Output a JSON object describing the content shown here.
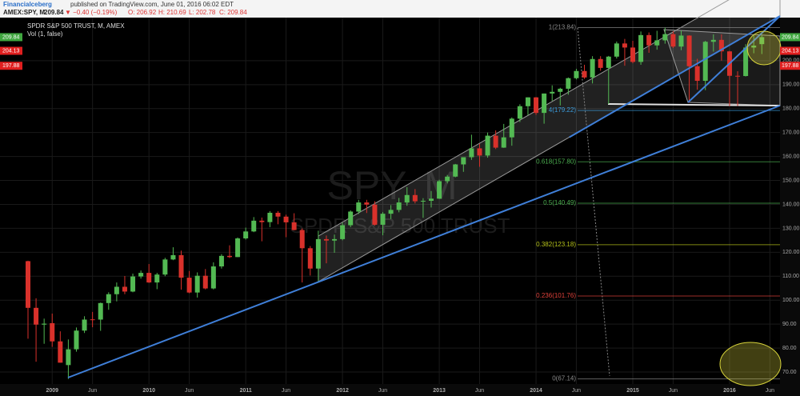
{
  "chart_data": {
    "type": "candlestick",
    "header": {
      "author": "Financialceberg",
      "published": "published on TradingView.com, June 01, 2016 06:02 EDT",
      "symbol": "AMEX:SPY, M",
      "last": "209.84",
      "change": "▼ −0.40 (−0.19%)",
      "o": "O: 206.92",
      "h": "H: 210.69",
      "l": "L: 202.78",
      "c": "C: 209.84"
    },
    "legend": {
      "series": "SPDR S&P 500 TRUST, M, AMEX",
      "indicator": "Vol (1, false)"
    },
    "watermark": {
      "symbol": "SPY, M",
      "name": "SPDR S&P 500 TRUST"
    },
    "categories": [
      null,
      null,
      null,
      "2009",
      null,
      null,
      null,
      null,
      "Jun",
      null,
      null,
      null,
      null,
      null,
      null,
      "2010",
      null,
      null,
      null,
      null,
      "Jun",
      null,
      null,
      null,
      null,
      null,
      null,
      "2011",
      null,
      null,
      null,
      null,
      "Jun",
      null,
      null,
      null,
      null,
      null,
      null,
      "2012",
      null,
      null,
      null,
      null,
      "Jun",
      null,
      null,
      null,
      null,
      null,
      null,
      "2013",
      null,
      null,
      null,
      null,
      "Jun",
      null,
      null,
      null,
      null,
      null,
      null,
      "2014",
      null,
      null,
      null,
      null,
      "Jun",
      null,
      null,
      null,
      null,
      null,
      null,
      "2015",
      null,
      null,
      null,
      null,
      "Jun",
      null,
      null,
      null,
      null,
      null,
      null,
      "2016",
      null,
      null,
      null,
      null,
      "Jun"
    ],
    "open": [
      116.3,
      96.8,
      89.8,
      90.4,
      82.8,
      72.9,
      79.5,
      87.3,
      92.0,
      91.9,
      98.8,
      102.5,
      105.6,
      103.6,
      109.9,
      111.4,
      107.4,
      110.7,
      117.0,
      118.8,
      109.4,
      103.2,
      110.2,
      104.9,
      114.1,
      118.5,
      118.0,
      125.8,
      128.7,
      133.2,
      132.6,
      136.5,
      134.9,
      132.5,
      129.3,
      121.7,
      113.2,
      125.5,
      124.9,
      125.5,
      131.3,
      137.0,
      140.8,
      139.9,
      131.5,
      136.1,
      137.7,
      140.8,
      143.9,
      141.3,
      141.5,
      142.4,
      149.7,
      151.6,
      156.7,
      159.7,
      163.4,
      160.4,
      168.7,
      163.7,
      168.0,
      175.8,
      181.0,
      184.7,
      178.2,
      186.3,
      187.0,
      188.3,
      192.7,
      195.7,
      193.0,
      200.7,
      197.0,
      201.7,
      207.2,
      205.5,
      199.5,
      210.7,
      206.4,
      208.5,
      211.1,
      205.9,
      210.5,
      197.7,
      191.6,
      207.9,
      208.7,
      203.9,
      193.7,
      193.6,
      205.5,
      206.92,
      null
    ],
    "high": [
      116.5,
      100.8,
      92.3,
      94.4,
      87.0,
      83.6,
      88.6,
      93.3,
      95.1,
      99.0,
      103.3,
      107.4,
      110.1,
      111.1,
      112.4,
      115.1,
      111.4,
      117.7,
      122.1,
      120.7,
      112.2,
      111.6,
      113.0,
      115.8,
      119.2,
      122.9,
      126.2,
      130.3,
      134.7,
      134.5,
      137.2,
      137.2,
      135.7,
      136.3,
      130.0,
      122.6,
      129.0,
      127.0,
      127.4,
      132.4,
      137.5,
      141.9,
      141.9,
      141.3,
      136.8,
      139.7,
      142.7,
      147.2,
      146.4,
      142.6,
      145.6,
      150.3,
      152.3,
      156.9,
      159.7,
      169.1,
      165.3,
      170.0,
      170.9,
      173.6,
      176.3,
      181.8,
      184.7,
      184.8,
      186.3,
      189.7,
      188.7,
      193.0,
      196.6,
      198.3,
      201.9,
      201.9,
      202.0,
      208.0,
      209.1,
      208.3,
      212.2,
      211.8,
      212.5,
      213.8,
      212.3,
      212.6,
      210.6,
      200.8,
      208.3,
      211.0,
      211.0,
      204.1,
      195.6,
      206.9,
      210.9,
      210.69,
      null
    ],
    "low": [
      83.9,
      74.3,
      81.8,
      80.5,
      73.9,
      67.1,
      78.5,
      86.3,
      88.7,
      87.2,
      96.0,
      99.5,
      102.5,
      103.3,
      109.0,
      107.2,
      104.6,
      110.0,
      116.7,
      104.4,
      102.9,
      101.1,
      104.5,
      104.5,
      113.2,
      117.6,
      118.0,
      125.3,
      128.4,
      124.6,
      130.5,
      131.7,
      126.3,
      129.2,
      107.4,
      110.3,
      107.4,
      115.4,
      119.8,
      125.0,
      130.5,
      136.0,
      136.4,
      131.1,
      127.1,
      133.9,
      136.7,
      139.4,
      140.4,
      134.4,
      138.7,
      142.3,
      148.8,
      151.3,
      153.6,
      158.6,
      155.7,
      159.5,
      163.1,
      163.6,
      164.5,
      174.4,
      177.3,
      177.4,
      173.7,
      183.2,
      181.3,
      185.8,
      192.2,
      192.4,
      190.5,
      195.8,
      181.9,
      200.9,
      197.9,
      198.9,
      198.3,
      203.3,
      204.6,
      207.1,
      205.3,
      204.4,
      182.4,
      187.9,
      187.7,
      203.8,
      200.0,
      181.0,
      181.1,
      193.4,
      203.1,
      202.78,
      null
    ],
    "close": [
      96.8,
      89.8,
      90.2,
      82.8,
      73.9,
      79.5,
      87.3,
      91.9,
      91.9,
      98.8,
      102.5,
      105.6,
      103.6,
      109.9,
      111.4,
      107.4,
      110.7,
      117.0,
      118.8,
      109.4,
      103.2,
      110.2,
      104.9,
      114.1,
      118.5,
      118.0,
      125.8,
      128.7,
      133.2,
      132.6,
      136.5,
      134.9,
      132.5,
      129.3,
      121.7,
      113.2,
      125.5,
      124.9,
      125.5,
      131.3,
      137.0,
      140.8,
      139.9,
      131.5,
      136.1,
      137.7,
      140.8,
      143.9,
      141.3,
      141.5,
      142.4,
      149.7,
      151.6,
      156.7,
      159.7,
      163.4,
      160.4,
      168.7,
      163.7,
      168.0,
      175.8,
      181.0,
      184.7,
      178.2,
      186.3,
      187.0,
      188.3,
      192.7,
      195.7,
      193.0,
      200.7,
      197.0,
      201.7,
      207.2,
      205.5,
      199.5,
      210.7,
      206.4,
      208.5,
      211.1,
      205.9,
      210.5,
      197.7,
      191.6,
      207.9,
      208.7,
      203.9,
      193.7,
      193.6,
      205.5,
      206.3,
      209.84,
      null
    ],
    "up_color": "#53b953",
    "down_color": "#d9312b",
    "ylim": [
      65,
      218
    ],
    "yticks": [
      {
        "value": 70,
        "label": "70.00"
      },
      {
        "value": 80,
        "label": "80.00"
      },
      {
        "value": 90,
        "label": "90.00"
      },
      {
        "value": 100,
        "label": "100.00"
      },
      {
        "value": 110,
        "label": "110.00"
      },
      {
        "value": 120,
        "label": "120.00"
      },
      {
        "value": 130,
        "label": "130.00"
      },
      {
        "value": 140,
        "label": "140.00"
      },
      {
        "value": 150,
        "label": "150.00"
      },
      {
        "value": 160,
        "label": "160.00"
      },
      {
        "value": 170,
        "label": "170.00"
      },
      {
        "value": 180,
        "label": "180.00"
      },
      {
        "value": 190,
        "label": "190.00"
      },
      {
        "value": 200,
        "label": "200.00"
      }
    ],
    "grid": true,
    "price_tags": [
      {
        "value": 209.84,
        "label": "209.84",
        "color": "#3fa63f"
      },
      {
        "value": 204.13,
        "label": "204.13",
        "color": "#e01f1f"
      },
      {
        "value": 197.88,
        "label": "197.88",
        "color": "#e01f1f"
      }
    ],
    "fib_levels": [
      {
        "value": 213.84,
        "label": "1(213.84)",
        "color": "#8a8a8a"
      },
      {
        "value": 179.22,
        "label": "4(179.22)",
        "color": "#3a9ad9"
      },
      {
        "value": 157.8,
        "label": "0.618(157.80)",
        "color": "#4caf50"
      },
      {
        "value": 140.49,
        "label": "0.5(140.49)",
        "color": "#4caf50"
      },
      {
        "value": 123.18,
        "label": "0.382(123.18)",
        "color": "#b5c21a"
      },
      {
        "value": 101.76,
        "label": "0.236(101.76)",
        "color": "#e0413a"
      },
      {
        "value": 67.14,
        "label": "0(67.14)",
        "color": "#8a8a8a"
      }
    ]
  }
}
